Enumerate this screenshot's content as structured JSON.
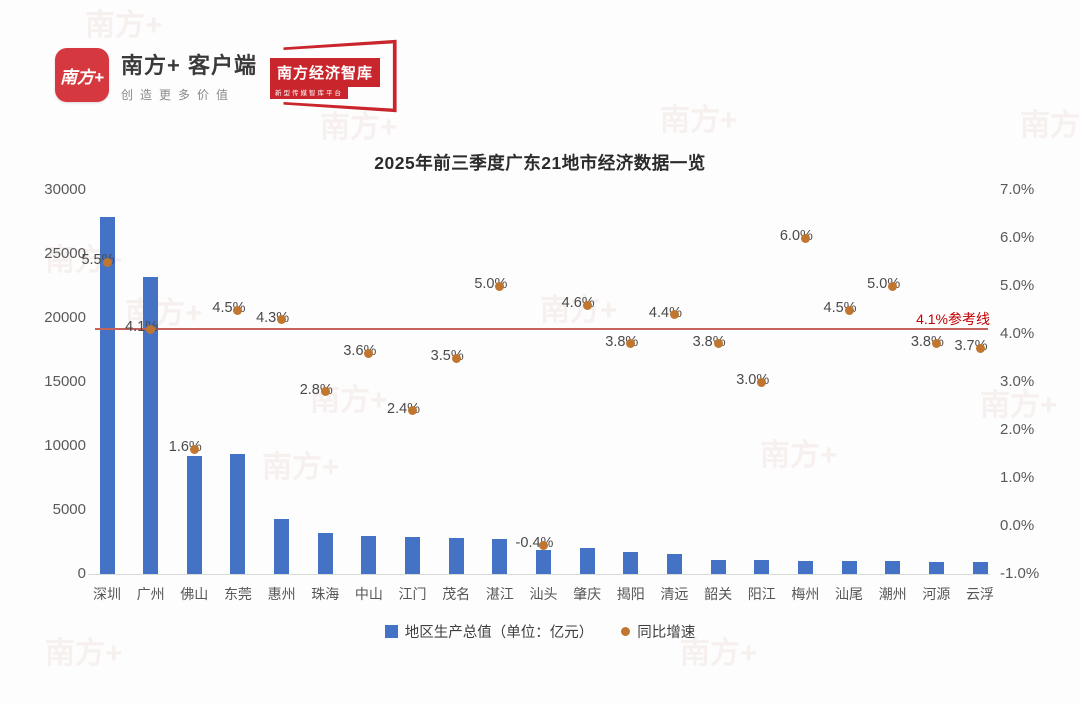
{
  "header": {
    "app_icon_text": "南方+",
    "app_name": "南方+ 客户端",
    "app_slogan": "创造更多价值",
    "brand2_name": "南方经济智库",
    "brand2_tagline": "新型传媒智库平台"
  },
  "watermark_text": "南方+",
  "chart_data": {
    "type": "bar",
    "subtype": "combo-bar-scatter",
    "title": "2025年前三季度广东21地市经济数据一览",
    "categories": [
      "深圳",
      "广州",
      "佛山",
      "东莞",
      "惠州",
      "珠海",
      "中山",
      "江门",
      "茂名",
      "湛江",
      "汕头",
      "肇庆",
      "揭阳",
      "清远",
      "韶关",
      "阳江",
      "梅州",
      "汕尾",
      "潮州",
      "河源",
      "云浮"
    ],
    "series": [
      {
        "name": "地区生产总值（单位：亿元）",
        "type": "bar",
        "axis": "left",
        "color": "#4472C4",
        "values": [
          27900,
          23200,
          9200,
          9350,
          4300,
          3200,
          3000,
          2920,
          2780,
          2720,
          1900,
          2050,
          1720,
          1600,
          1100,
          1060,
          1040,
          1020,
          1000,
          960,
          920
        ]
      },
      {
        "name": "同比增速",
        "type": "scatter",
        "axis": "right",
        "color": "#C0762E",
        "values": [
          5.5,
          4.1,
          1.6,
          4.5,
          4.3,
          2.8,
          3.6,
          2.4,
          3.5,
          5.0,
          -0.4,
          4.6,
          3.8,
          4.4,
          3.8,
          3.0,
          6.0,
          4.5,
          5.0,
          3.8,
          3.7
        ],
        "labels": [
          "5.5%",
          "4.1%",
          "1.6%",
          "4.5%",
          "4.3%",
          "2.8%",
          "3.6%",
          "2.4%",
          "3.5%",
          "5.0%",
          "-0.4%",
          "4.6%",
          "3.8%",
          "4.4%",
          "3.8%",
          "3.0%",
          "6.0%",
          "4.5%",
          "5.0%",
          "3.8%",
          "3.7%"
        ]
      }
    ],
    "left_axis": {
      "min": 0,
      "max": 30000,
      "tick_labels": [
        "30000",
        "25000",
        "20000",
        "15000",
        "10000",
        "5000",
        "0"
      ]
    },
    "right_axis": {
      "min": -1.0,
      "max": 7.0,
      "tick_labels": [
        "7.0%",
        "6.0%",
        "5.0%",
        "4.0%",
        "3.0%",
        "2.0%",
        "1.0%",
        "0.0%",
        "-1.0%"
      ]
    },
    "reference_line": {
      "value": 4.1,
      "label": "4.1%参考线",
      "color": "#C00000"
    },
    "grid": "off",
    "legend_position": "bottom-center"
  }
}
